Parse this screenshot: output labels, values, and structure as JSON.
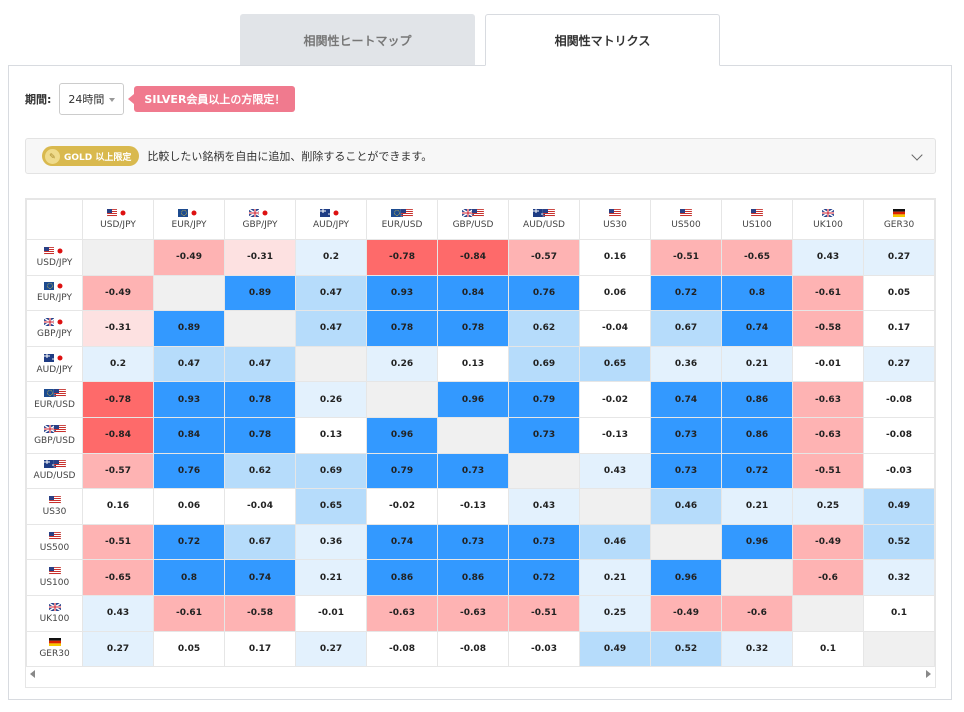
{
  "tabs": [
    {
      "label": "相関性ヒートマップ",
      "active": false
    },
    {
      "label": "相関性マトリクス",
      "active": true
    }
  ],
  "period": {
    "label": "期間:",
    "value": "24時間",
    "badge": "SILVER会員以上の方限定！"
  },
  "gold_bar": {
    "badge": "GOLD 以上限定",
    "text": "比較したい銘柄を自由に追加、削除することができます。"
  },
  "pairs": [
    {
      "label": "USD/JPY",
      "flags": [
        "us",
        "jp"
      ]
    },
    {
      "label": "EUR/JPY",
      "flags": [
        "eu",
        "jp"
      ]
    },
    {
      "label": "GBP/JPY",
      "flags": [
        "uk",
        "jp"
      ]
    },
    {
      "label": "AUD/JPY",
      "flags": [
        "au",
        "jp"
      ]
    },
    {
      "label": "EUR/USD",
      "flags": [
        "eu",
        "us"
      ]
    },
    {
      "label": "GBP/USD",
      "flags": [
        "uk",
        "us"
      ]
    },
    {
      "label": "AUD/USD",
      "flags": [
        "au",
        "us"
      ]
    },
    {
      "label": "US30",
      "flags": [
        "us"
      ]
    },
    {
      "label": "US500",
      "flags": [
        "us"
      ]
    },
    {
      "label": "US100",
      "flags": [
        "us"
      ]
    },
    {
      "label": "UK100",
      "flags": [
        "uk"
      ]
    },
    {
      "label": "GER30",
      "flags": [
        "de"
      ]
    }
  ],
  "matrix": [
    [
      null,
      -0.49,
      -0.31,
      0.2,
      -0.78,
      -0.84,
      -0.57,
      0.16,
      -0.51,
      -0.65,
      0.43,
      0.27
    ],
    [
      -0.49,
      null,
      0.89,
      0.47,
      0.93,
      0.84,
      0.76,
      0.06,
      0.72,
      0.8,
      -0.61,
      0.05
    ],
    [
      -0.31,
      0.89,
      null,
      0.47,
      0.78,
      0.78,
      0.62,
      -0.04,
      0.67,
      0.74,
      -0.58,
      0.17
    ],
    [
      0.2,
      0.47,
      0.47,
      null,
      0.26,
      0.13,
      0.69,
      0.65,
      0.36,
      0.21,
      -0.01,
      0.27
    ],
    [
      -0.78,
      0.93,
      0.78,
      0.26,
      null,
      0.96,
      0.79,
      -0.02,
      0.74,
      0.86,
      -0.63,
      -0.08
    ],
    [
      -0.84,
      0.84,
      0.78,
      0.13,
      0.96,
      null,
      0.73,
      -0.13,
      0.73,
      0.86,
      -0.63,
      -0.08
    ],
    [
      -0.57,
      0.76,
      0.62,
      0.69,
      0.79,
      0.73,
      null,
      0.43,
      0.73,
      0.72,
      -0.51,
      -0.03
    ],
    [
      0.16,
      0.06,
      -0.04,
      0.65,
      -0.02,
      -0.13,
      0.43,
      null,
      0.46,
      0.21,
      0.25,
      0.49
    ],
    [
      -0.51,
      0.72,
      0.67,
      0.36,
      0.74,
      0.73,
      0.73,
      0.46,
      null,
      0.96,
      -0.49,
      0.52
    ],
    [
      -0.65,
      0.8,
      0.74,
      0.21,
      0.86,
      0.86,
      0.72,
      0.21,
      0.96,
      null,
      -0.6,
      0.32
    ],
    [
      0.43,
      -0.61,
      -0.58,
      -0.01,
      -0.63,
      -0.63,
      -0.51,
      0.25,
      -0.49,
      -0.6,
      null,
      0.1
    ],
    [
      0.27,
      0.05,
      0.17,
      0.27,
      -0.08,
      -0.08,
      -0.03,
      0.49,
      0.52,
      0.32,
      0.1,
      null
    ]
  ],
  "colors": {
    "pos_strong": "#3399ff",
    "pos_mid": "#b6dcfb",
    "pos_light": "#e3f1fd",
    "neg_strong": "#fe6a6a",
    "neg_mid": "#feb3b3",
    "neg_light": "#fde1e1",
    "neutral": "#ffffff",
    "diagonal": "#f0f0f0"
  }
}
